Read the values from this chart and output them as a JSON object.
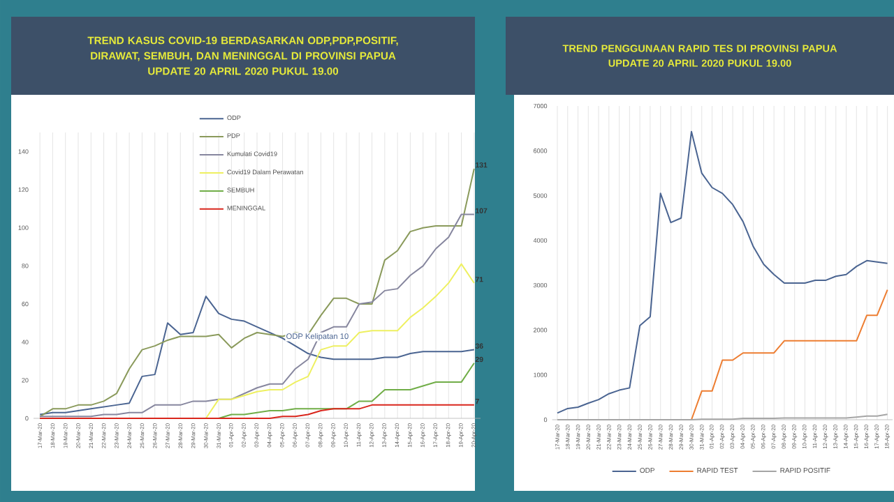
{
  "chart_data": [
    {
      "type": "line",
      "title": "TREND KASUS COVID-19 BERDASARKAN ODP,PDP,POSITIF, DIRAWAT, SEMBUH, DAN MENINGGAL DI PROVINSI PAPUA",
      "subtitle": "UPDATE  20 APRIL 2020 PUKUL 19.00",
      "categories": [
        "17-Mar-20",
        "18-Mar-20",
        "19-Mar-20",
        "20-Mar-20",
        "21-Mar-20",
        "22-Mar-20",
        "23-Mar-20",
        "24-Mar-20",
        "25-Mar-20",
        "26-Mar-20",
        "27-Mar-20",
        "28-Mar-20",
        "29-Mar-20",
        "30-Mar-20",
        "31-Mar-20",
        "01-Apr-20",
        "02-Apr-20",
        "03-Apr-20",
        "04-Apr-20",
        "05-Apr-20",
        "06-Apr-20",
        "07-Apr-20",
        "08-Apr-20",
        "09-Apr-20",
        "10-Apr-20",
        "11-Apr-20",
        "12-Apr-20",
        "13-Apr-20",
        "14-Apr-20",
        "15-Apr-20",
        "16-Apr-20",
        "17-Apr-20",
        "18-Apr-20",
        "19-Apr-20",
        "20-Apr-20"
      ],
      "series": [
        {
          "name": "ODP",
          "color": "#4a6491",
          "values": [
            2,
            3,
            3,
            4,
            5,
            6,
            7,
            8,
            22,
            23,
            50,
            44,
            45,
            64,
            55,
            52,
            51,
            48,
            45,
            42,
            38,
            34,
            32,
            31,
            31,
            31,
            31,
            32,
            32,
            34,
            35,
            35,
            35,
            35,
            36
          ],
          "value_labels": [
            null,
            null,
            null,
            null,
            null,
            null,
            null,
            null,
            null,
            null,
            null,
            null,
            null,
            null,
            null,
            null,
            null,
            null,
            null,
            null,
            null,
            null,
            null,
            null,
            null,
            null,
            null,
            null,
            null,
            null,
            null,
            null,
            null,
            null,
            "36"
          ]
        },
        {
          "name": "PDP",
          "color": "#8a9a5b",
          "values": [
            1,
            5,
            5,
            7,
            7,
            9,
            13,
            26,
            36,
            38,
            41,
            43,
            43,
            43,
            44,
            37,
            42,
            45,
            44,
            43,
            45,
            44,
            54,
            63,
            63,
            60,
            60,
            83,
            88,
            98,
            100,
            101,
            101,
            101,
            131
          ],
          "value_labels": [
            null,
            null,
            null,
            null,
            null,
            null,
            null,
            null,
            null,
            null,
            null,
            null,
            null,
            null,
            null,
            null,
            null,
            null,
            null,
            null,
            null,
            null,
            null,
            null,
            null,
            null,
            null,
            null,
            null,
            null,
            null,
            null,
            null,
            null,
            "131"
          ]
        },
        {
          "name": "Kumulati Covid19",
          "color": "#86869e",
          "values": [
            1,
            1,
            1,
            1,
            1,
            2,
            2,
            3,
            3,
            7,
            7,
            7,
            9,
            9,
            10,
            10,
            13,
            16,
            18,
            18,
            26,
            31,
            45,
            48,
            48,
            60,
            61,
            67,
            68,
            75,
            80,
            89,
            95,
            107,
            107
          ],
          "value_labels": [
            null,
            null,
            null,
            null,
            null,
            null,
            null,
            null,
            null,
            null,
            null,
            null,
            null,
            null,
            null,
            null,
            null,
            null,
            null,
            null,
            null,
            null,
            null,
            null,
            null,
            null,
            null,
            null,
            null,
            null,
            null,
            null,
            null,
            null,
            "107"
          ]
        },
        {
          "name": "Covid19 Dalam Perawatan",
          "color": "#eef060",
          "values": [
            null,
            null,
            null,
            null,
            null,
            null,
            null,
            null,
            null,
            null,
            null,
            null,
            0,
            0,
            10,
            10,
            12,
            14,
            15,
            15,
            19,
            22,
            36,
            38,
            38,
            45,
            46,
            46,
            46,
            53,
            58,
            64,
            71,
            81,
            71
          ],
          "value_labels": [
            null,
            null,
            null,
            null,
            null,
            null,
            null,
            null,
            null,
            null,
            null,
            null,
            null,
            null,
            null,
            null,
            null,
            null,
            null,
            null,
            null,
            null,
            null,
            null,
            null,
            null,
            null,
            null,
            null,
            null,
            null,
            null,
            null,
            null,
            "71"
          ]
        },
        {
          "name": "SEMBUH",
          "color": "#70ad47",
          "values": [
            0,
            0,
            0,
            0,
            0,
            0,
            0,
            0,
            0,
            0,
            0,
            0,
            0,
            0,
            0,
            2,
            2,
            3,
            4,
            4,
            5,
            5,
            5,
            5,
            5,
            9,
            9,
            15,
            15,
            15,
            17,
            19,
            19,
            19,
            29
          ],
          "value_labels": [
            null,
            null,
            null,
            null,
            null,
            null,
            null,
            null,
            null,
            null,
            null,
            null,
            null,
            null,
            null,
            null,
            null,
            null,
            null,
            null,
            null,
            null,
            null,
            null,
            null,
            null,
            null,
            null,
            null,
            null,
            null,
            null,
            null,
            null,
            "29"
          ]
        },
        {
          "name": "MENINGGAL",
          "color": "#d9261c",
          "values": [
            0,
            0,
            0,
            0,
            0,
            0,
            0,
            0,
            0,
            0,
            0,
            0,
            0,
            0,
            0,
            0,
            0,
            0,
            0,
            1,
            1,
            2,
            4,
            5,
            5,
            5,
            7,
            7,
            7,
            7,
            7,
            7,
            7,
            7,
            7
          ],
          "value_labels": [
            null,
            null,
            null,
            null,
            null,
            null,
            null,
            null,
            null,
            null,
            null,
            null,
            null,
            null,
            null,
            null,
            null,
            null,
            null,
            null,
            null,
            null,
            null,
            null,
            null,
            null,
            null,
            null,
            null,
            null,
            null,
            null,
            null,
            null,
            "7"
          ]
        }
      ],
      "ylim": [
        0,
        150
      ],
      "yticks": [
        0,
        20,
        40,
        60,
        80,
        100,
        120,
        140
      ],
      "grid": "x",
      "legend": "top",
      "annotations": [
        "ODP Kelipatan 10"
      ]
    },
    {
      "type": "line",
      "title": "TREND PENGGUNAAN RAPID TES DI PROVINSI PAPUA",
      "subtitle": "UPDATE  20 APRIL 2020 PUKUL 19.00",
      "categories": [
        "17-Mar-20",
        "18-Mar-20",
        "19-Mar-20",
        "20-Mar-20",
        "21-Mar-20",
        "22-Mar-20",
        "23-Mar-20",
        "24-Mar-20",
        "25-Mar-20",
        "26-Mar-20",
        "27-Mar-20",
        "28-Mar-20",
        "29-Mar-20",
        "30-Mar-20",
        "31-Mar-20",
        "01-Apr-20",
        "02-Apr-20",
        "03-Apr-20",
        "04-Apr-20",
        "05-Apr-20",
        "06-Apr-20",
        "07-Apr-20",
        "08-Apr-20",
        "09-Apr-20",
        "10-Apr-20",
        "11-Apr-20",
        "12-Apr-20",
        "13-Apr-20",
        "14-Apr-20",
        "15-Apr-20",
        "16-Apr-20",
        "17-Apr-20",
        "18-Apr-20"
      ],
      "series": [
        {
          "name": "ODP",
          "color": "#4a6491",
          "values": [
            150,
            250,
            280,
            370,
            450,
            580,
            660,
            710,
            2100,
            2300,
            5050,
            4400,
            4500,
            6430,
            5500,
            5180,
            5050,
            4800,
            4420,
            3860,
            3470,
            3240,
            3050,
            3050,
            3050,
            3110,
            3110,
            3200,
            3240,
            3420,
            3550,
            3520,
            3490
          ]
        },
        {
          "name": "RAPID TEST",
          "color": "#ed7d31",
          "values": [
            null,
            null,
            null,
            null,
            null,
            null,
            null,
            null,
            null,
            null,
            null,
            null,
            0,
            0,
            640,
            640,
            1330,
            1330,
            1490,
            1490,
            1490,
            1490,
            1760,
            1760,
            1760,
            1760,
            1760,
            1760,
            1760,
            1760,
            2330,
            2330,
            2900
          ]
        },
        {
          "name": "RAPID POSITIF",
          "color": "#a5a5a5",
          "values": [
            0,
            0,
            0,
            0,
            0,
            0,
            0,
            0,
            0,
            0,
            0,
            0,
            0,
            0,
            10,
            10,
            10,
            10,
            30,
            30,
            30,
            30,
            40,
            40,
            40,
            40,
            40,
            40,
            40,
            60,
            80,
            80,
            120
          ]
        }
      ],
      "ylim": [
        0,
        7000
      ],
      "yticks": [
        0,
        1000,
        2000,
        3000,
        4000,
        5000,
        6000,
        7000
      ],
      "grid": "x",
      "legend": "bottom"
    }
  ]
}
